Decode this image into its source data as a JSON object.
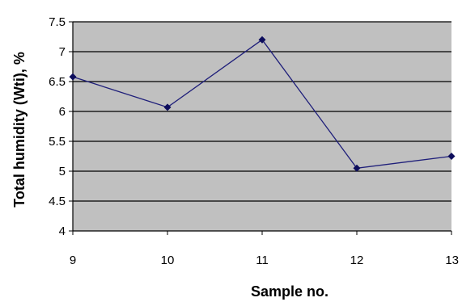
{
  "chart_data": {
    "type": "line",
    "title": "",
    "xlabel": "Sample no.",
    "ylabel": "Total humidity  (Wti),  %",
    "x": [
      9,
      10,
      11,
      12,
      13
    ],
    "x_tick_labels": [
      "9",
      "10",
      "11",
      "12",
      "13"
    ],
    "y_tick_labels": [
      "4",
      "4.5",
      "5",
      "5.5",
      "6",
      "6.5",
      "7",
      "7.5"
    ],
    "ylim": [
      4,
      7.5
    ],
    "y_ticks": [
      4,
      4.5,
      5,
      5.5,
      6,
      6.5,
      7,
      7.5
    ],
    "grid": true,
    "legend": "none",
    "series": [
      {
        "values": [
          6.58,
          6.07,
          7.2,
          5.05,
          5.25
        ]
      }
    ],
    "colors": {
      "plot_background": "#c0c0c0",
      "gridline": "#000000",
      "line": "#1f1f7a",
      "marker": "#0d0d5c"
    }
  }
}
